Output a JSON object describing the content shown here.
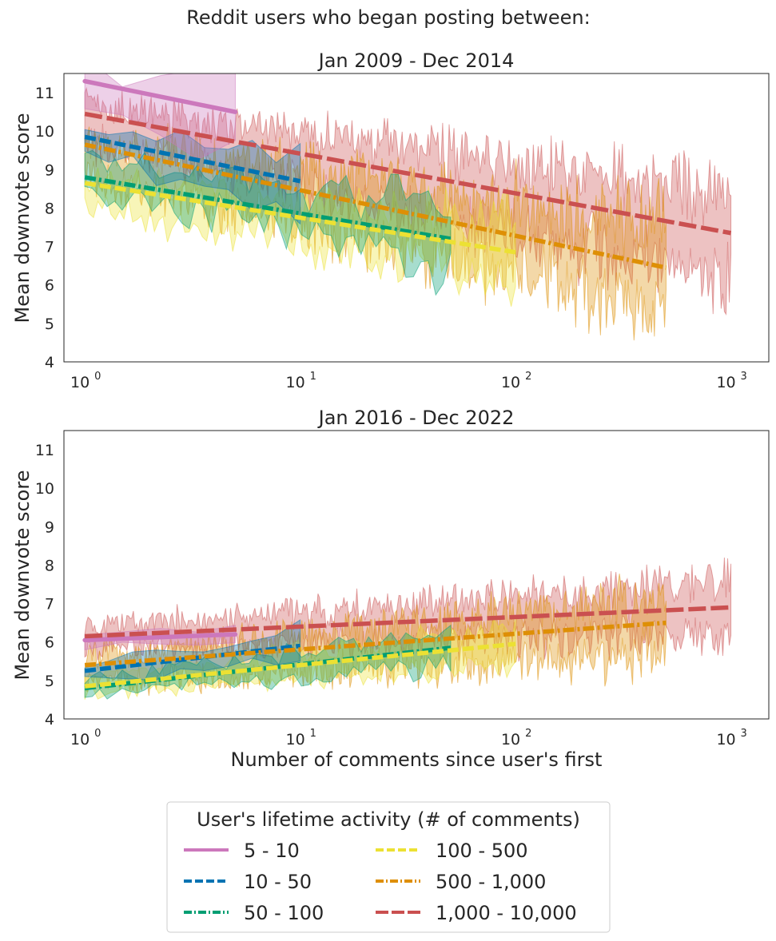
{
  "figure": {
    "suptitle": "Reddit users who began posting between:"
  },
  "chart_data": [
    {
      "type": "line",
      "title": "Jan 2009 - Dec 2014",
      "xlabel": "",
      "ylabel": "Mean downvote score",
      "xscale": "log",
      "xlim": [
        0.8,
        1500
      ],
      "ylim": [
        4,
        11.5
      ],
      "xticks": [
        1,
        10,
        100,
        1000
      ],
      "xtick_labels": [
        {
          "base": "10",
          "exp": "0"
        },
        {
          "base": "10",
          "exp": "1"
        },
        {
          "base": "10",
          "exp": "2"
        },
        {
          "base": "10",
          "exp": "3"
        }
      ],
      "yticks": [
        4,
        5,
        6,
        7,
        8,
        9,
        10,
        11
      ],
      "grid": false,
      "series": [
        {
          "name": "5 - 10",
          "color": "#cc78bc",
          "dash": "solid",
          "x_range": [
            1,
            5
          ],
          "trend": [
            11.3,
            10.5
          ],
          "noise_center": [
            11.2,
            10.6
          ],
          "band_half_width": 0.7,
          "noise_amp": 0.4
        },
        {
          "name": "10 - 50",
          "color": "#0173b2",
          "dash": "dashed",
          "x_range": [
            1,
            10
          ],
          "trend": [
            9.85,
            8.7
          ],
          "noise_center": [
            9.7,
            8.8
          ],
          "band_half_width": 0.5,
          "noise_amp": 0.35
        },
        {
          "name": "50 - 100",
          "color": "#029e73",
          "dash": "dashdot",
          "x_range": [
            1,
            50
          ],
          "trend": [
            8.8,
            7.2
          ],
          "noise_center": [
            8.9,
            7.2
          ],
          "band_half_width": 0.55,
          "noise_amp": 0.5
        },
        {
          "name": "100 - 500",
          "color": "#ece133",
          "dash": "dashed",
          "x_range": [
            1,
            100
          ],
          "trend": [
            8.65,
            6.85
          ],
          "noise_center": [
            8.4,
            6.9
          ],
          "band_half_width": 0.6,
          "noise_amp": 0.45
        },
        {
          "name": "500 - 1,000",
          "color": "#de8f05",
          "dash": "dashdot",
          "x_range": [
            1,
            500
          ],
          "trend": [
            9.65,
            6.45
          ],
          "noise_center": [
            9.3,
            6.5
          ],
          "band_half_width": 0.75,
          "noise_amp": 0.7
        },
        {
          "name": "1,000 - 10,000",
          "color": "#ca5050",
          "dash": "longdash",
          "x_range": [
            1,
            1000
          ],
          "trend": [
            10.45,
            7.35
          ],
          "noise_center": [
            10.2,
            7.3
          ],
          "band_half_width": 0.8,
          "noise_amp": 0.6
        }
      ]
    },
    {
      "type": "line",
      "title": "Jan 2016 - Dec 2022",
      "xlabel": "Number of comments since user's first",
      "ylabel": "Mean downvote score",
      "xscale": "log",
      "xlim": [
        0.8,
        1500
      ],
      "ylim": [
        4,
        11.5
      ],
      "xticks": [
        1,
        10,
        100,
        1000
      ],
      "xtick_labels": [
        {
          "base": "10",
          "exp": "0"
        },
        {
          "base": "10",
          "exp": "1"
        },
        {
          "base": "10",
          "exp": "2"
        },
        {
          "base": "10",
          "exp": "3"
        }
      ],
      "yticks": [
        4,
        5,
        6,
        7,
        8,
        9,
        10,
        11
      ],
      "grid": false,
      "series": [
        {
          "name": "5 - 10",
          "color": "#cc78bc",
          "dash": "solid",
          "x_range": [
            1,
            5
          ],
          "trend": [
            6.05,
            6.2
          ],
          "noise_center": [
            6.05,
            6.2
          ],
          "band_half_width": 0.25,
          "noise_amp": 0.1
        },
        {
          "name": "10 - 50",
          "color": "#0173b2",
          "dash": "dashed",
          "x_range": [
            1,
            10
          ],
          "trend": [
            5.25,
            5.9
          ],
          "noise_center": [
            5.3,
            5.9
          ],
          "band_half_width": 0.3,
          "noise_amp": 0.15
        },
        {
          "name": "50 - 100",
          "color": "#029e73",
          "dash": "dashdot",
          "x_range": [
            1,
            50
          ],
          "trend": [
            4.8,
            5.85
          ],
          "noise_center": [
            4.85,
            5.8
          ],
          "band_half_width": 0.3,
          "noise_amp": 0.2
        },
        {
          "name": "100 - 500",
          "color": "#ece133",
          "dash": "dashed",
          "x_range": [
            1,
            100
          ],
          "trend": [
            4.85,
            5.95
          ],
          "noise_center": [
            4.9,
            5.9
          ],
          "band_half_width": 0.35,
          "noise_amp": 0.2
        },
        {
          "name": "500 - 1,000",
          "color": "#de8f05",
          "dash": "dashdot",
          "x_range": [
            1,
            500
          ],
          "trend": [
            5.4,
            6.5
          ],
          "noise_center": [
            5.3,
            6.4
          ],
          "band_half_width": 0.5,
          "noise_amp": 0.45
        },
        {
          "name": "1,000 - 10,000",
          "color": "#ca5050",
          "dash": "longdash",
          "x_range": [
            1,
            1000
          ],
          "trend": [
            6.15,
            6.9
          ],
          "noise_center": [
            6.1,
            6.9
          ],
          "band_half_width": 0.45,
          "noise_amp": 0.4
        }
      ]
    }
  ],
  "legend": {
    "title": "User's lifetime activity (# of comments)",
    "position": "bottom-center",
    "columns": 2,
    "items": [
      {
        "label": "5 - 10",
        "color": "#cc78bc",
        "dash": "solid"
      },
      {
        "label": "10 - 50",
        "color": "#0173b2",
        "dash": "dashed"
      },
      {
        "label": "50 - 100",
        "color": "#029e73",
        "dash": "dashdot"
      },
      {
        "label": "100 - 500",
        "color": "#ece133",
        "dash": "dashed"
      },
      {
        "label": "500 - 1,000",
        "color": "#de8f05",
        "dash": "dashdot"
      },
      {
        "label": "1,000 - 10,000",
        "color": "#ca5050",
        "dash": "longdash"
      }
    ]
  }
}
